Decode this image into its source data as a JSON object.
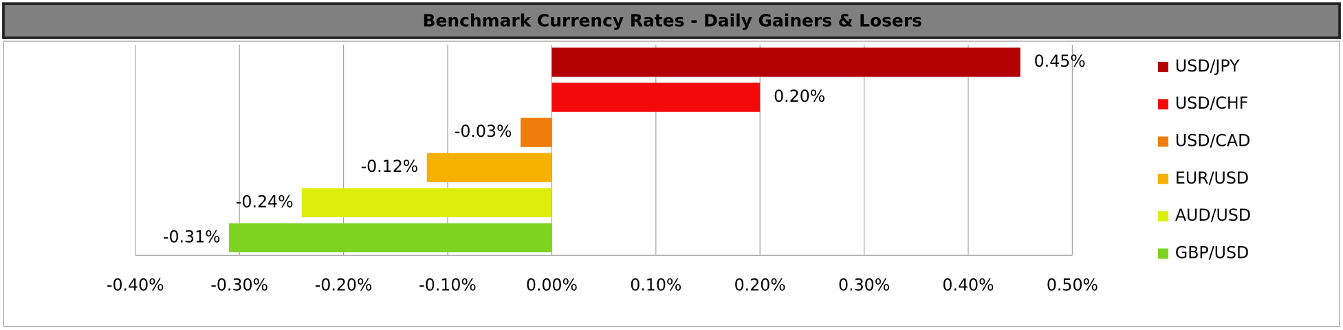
{
  "chart_data": {
    "type": "bar",
    "orientation": "horizontal",
    "title": "Benchmark Currency Rates - Daily Gainers & Losers",
    "categories": [
      "USD/JPY",
      "USD/CHF",
      "USD/CAD",
      "EUR/USD",
      "AUD/USD",
      "GBP/USD"
    ],
    "values": [
      0.45,
      0.2,
      -0.03,
      -0.12,
      -0.24,
      -0.31
    ],
    "value_labels": [
      "0.45%",
      "0.20%",
      "-0.03%",
      "-0.12%",
      "-0.24%",
      "-0.31%"
    ],
    "colors": [
      "#b30000",
      "#f40a0a",
      "#f07d0a",
      "#f5b000",
      "#dcee0a",
      "#7ed321"
    ],
    "xlim": [
      -0.4,
      0.5
    ],
    "xticks": [
      {
        "value": -0.4,
        "label": "-0.40%"
      },
      {
        "value": -0.3,
        "label": "-0.30%"
      },
      {
        "value": -0.2,
        "label": "-0.20%"
      },
      {
        "value": -0.1,
        "label": "-0.10%"
      },
      {
        "value": 0,
        "label": "0.00%"
      },
      {
        "value": 0.1,
        "label": "0.10%"
      },
      {
        "value": 0.2,
        "label": "0.20%"
      },
      {
        "value": 0.3,
        "label": "0.30%"
      },
      {
        "value": 0.4,
        "label": "0.40%"
      },
      {
        "value": 0.5,
        "label": "0.50%"
      }
    ],
    "grid": true,
    "legend": "right"
  }
}
